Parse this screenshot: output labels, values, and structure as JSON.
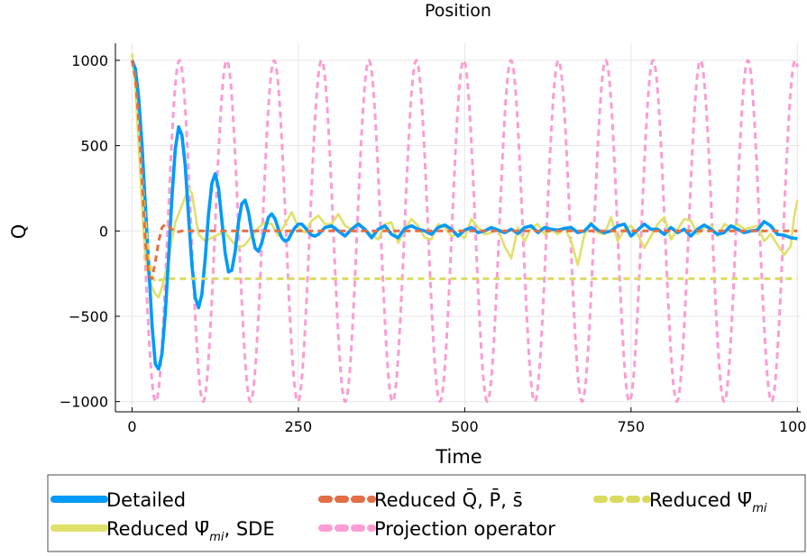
{
  "chart_data": {
    "type": "line",
    "title": "Position",
    "xlabel": "Time",
    "ylabel": "Q",
    "xlim": [
      -25,
      1005
    ],
    "ylim": [
      -1060,
      1100
    ],
    "xticks": [
      0,
      250,
      500,
      750,
      1000
    ],
    "xtick_labels": [
      "0",
      "250",
      "500",
      "750",
      "1000"
    ],
    "yticks": [
      -1000,
      -500,
      0,
      500,
      1000
    ],
    "ytick_labels": [
      "−1000",
      "−500",
      "0",
      "500",
      "1000"
    ],
    "grid": true,
    "legend_position": "bottom",
    "series": [
      {
        "name": "Detailed",
        "color": "#009AFA",
        "style": "solid",
        "x": [
          0,
          5,
          10,
          15,
          20,
          25,
          30,
          35,
          40,
          45,
          50,
          55,
          60,
          65,
          70,
          75,
          80,
          85,
          90,
          95,
          100,
          105,
          110,
          115,
          120,
          125,
          130,
          135,
          140,
          145,
          150,
          155,
          160,
          165,
          170,
          175,
          180,
          185,
          190,
          195,
          200,
          205,
          210,
          215,
          220,
          225,
          230,
          235,
          240,
          245,
          250,
          255,
          260,
          265,
          270,
          275,
          280,
          285,
          290,
          300,
          310,
          320,
          330,
          340,
          350,
          360,
          370,
          380,
          390,
          400,
          410,
          420,
          430,
          440,
          450,
          460,
          470,
          480,
          490,
          500,
          510,
          520,
          530,
          540,
          550,
          560,
          570,
          580,
          590,
          600,
          610,
          620,
          630,
          640,
          650,
          660,
          670,
          680,
          690,
          700,
          710,
          720,
          730,
          740,
          750,
          760,
          770,
          780,
          790,
          800,
          810,
          820,
          830,
          840,
          850,
          860,
          870,
          880,
          890,
          900,
          910,
          920,
          930,
          940,
          950,
          960,
          970,
          980,
          990,
          1000
        ],
        "values": [
          1000,
          950,
          780,
          500,
          150,
          -200,
          -550,
          -780,
          -810,
          -720,
          -480,
          -150,
          200,
          480,
          610,
          560,
          380,
          80,
          -200,
          -390,
          -450,
          -370,
          -160,
          100,
          280,
          335,
          250,
          60,
          -130,
          -240,
          -230,
          -120,
          50,
          160,
          180,
          110,
          -10,
          -100,
          -120,
          -70,
          10,
          80,
          100,
          70,
          10,
          -40,
          -60,
          -50,
          -10,
          20,
          40,
          40,
          20,
          -5,
          -25,
          -30,
          -20,
          0,
          20,
          30,
          0,
          -30,
          10,
          40,
          10,
          -40,
          10,
          30,
          -20,
          -40,
          15,
          30,
          10,
          0,
          -20,
          20,
          35,
          10,
          -30,
          5,
          20,
          -10,
          0,
          20,
          5,
          -10,
          10,
          -15,
          20,
          30,
          -10,
          20,
          10,
          5,
          15,
          20,
          -10,
          0,
          40,
          5,
          -10,
          0,
          30,
          40,
          -30,
          5,
          40,
          10,
          10,
          -20,
          20,
          -10,
          10,
          -30,
          10,
          35,
          10,
          -20,
          -10,
          30,
          10,
          -10,
          0,
          5,
          55,
          30,
          -20,
          -25,
          -40,
          -45
        ]
      },
      {
        "name": "Reduced Q̄, P̄, s̄",
        "color": "#E26F46",
        "style": "dashed",
        "x": [
          0,
          5,
          10,
          15,
          20,
          25,
          30,
          35,
          40,
          45,
          50,
          55,
          60,
          65,
          70,
          75,
          80,
          90,
          100,
          1000
        ],
        "values": [
          1000,
          900,
          650,
          300,
          -60,
          -260,
          -280,
          -180,
          -60,
          20,
          40,
          25,
          10,
          -5,
          -5,
          0,
          0,
          0,
          0,
          0
        ]
      },
      {
        "name": "Reduced Ψ̄_mi",
        "color": "#D9DB5E",
        "style": "dashed",
        "x": [
          0,
          5,
          10,
          15,
          20,
          25,
          30,
          35,
          40,
          50,
          1000
        ],
        "values": [
          1000,
          880,
          620,
          320,
          60,
          -150,
          -260,
          -300,
          -290,
          -280,
          -280
        ]
      },
      {
        "name": "Reduced Ψ̄_mi, SDE",
        "color": "#E0E06A",
        "style": "solid",
        "x": [
          0,
          5,
          10,
          15,
          20,
          25,
          30,
          35,
          40,
          45,
          50,
          55,
          60,
          65,
          70,
          75,
          80,
          85,
          90,
          95,
          100,
          110,
          120,
          130,
          140,
          150,
          160,
          170,
          180,
          190,
          200,
          210,
          220,
          230,
          240,
          250,
          260,
          270,
          280,
          290,
          300,
          310,
          320,
          330,
          340,
          350,
          360,
          370,
          380,
          390,
          400,
          410,
          420,
          430,
          440,
          450,
          460,
          470,
          480,
          490,
          500,
          510,
          520,
          530,
          540,
          550,
          560,
          570,
          580,
          590,
          600,
          610,
          620,
          630,
          640,
          650,
          660,
          670,
          680,
          690,
          700,
          710,
          720,
          730,
          740,
          750,
          760,
          770,
          780,
          790,
          800,
          810,
          820,
          830,
          840,
          850,
          860,
          870,
          880,
          890,
          900,
          910,
          920,
          930,
          940,
          950,
          960,
          970,
          980,
          990,
          995,
          1000
        ],
        "values": [
          1040,
          850,
          500,
          150,
          -150,
          -280,
          -330,
          -370,
          -390,
          -330,
          -250,
          -180,
          -50,
          50,
          100,
          150,
          200,
          250,
          220,
          100,
          -20,
          -60,
          -40,
          -20,
          -10,
          -60,
          -100,
          -80,
          -30,
          20,
          50,
          40,
          -30,
          40,
          110,
          20,
          -10,
          60,
          90,
          40,
          40,
          100,
          30,
          10,
          50,
          10,
          -20,
          -50,
          40,
          50,
          -70,
          10,
          70,
          30,
          -40,
          -50,
          40,
          20,
          -30,
          -20,
          -40,
          70,
          20,
          -20,
          -10,
          10,
          -90,
          -160,
          20,
          -60,
          20,
          40,
          -20,
          10,
          -20,
          20,
          -60,
          -200,
          -20,
          50,
          -10,
          -20,
          80,
          -60,
          10,
          30,
          -20,
          -100,
          -30,
          40,
          80,
          -50,
          10,
          70,
          60,
          -20,
          20,
          30,
          -30,
          40,
          20,
          40,
          10,
          20,
          30,
          -60,
          -20,
          -80,
          -140,
          -90,
          80,
          180
        ]
      },
      {
        "name": "Projection operator",
        "color": "#FA9ED1",
        "style": "dashed",
        "function": "cos",
        "amplitude": 1000,
        "period": 71.2,
        "x_range": [
          0,
          1000
        ]
      }
    ]
  },
  "legend": {
    "entries": [
      {
        "key": "detailed",
        "label": "Detailed",
        "color": "#009AFA",
        "style": "solid"
      },
      {
        "key": "reduced-qps",
        "label": "Reduced Q̄, P̄, s̄",
        "color": "#E26F46",
        "style": "dashed"
      },
      {
        "key": "reduced-psi",
        "label": "Reduced Ψ̄",
        "sub": "mi",
        "color": "#D9DB5E",
        "style": "dashed"
      },
      {
        "key": "reduced-psi-sde",
        "label": "Reduced Ψ̄",
        "sub": "mi",
        "suffix": ", SDE",
        "color": "#E0E06A",
        "style": "solid"
      },
      {
        "key": "projection",
        "label": "Projection operator",
        "color": "#FA9ED1",
        "style": "dashed"
      }
    ]
  }
}
